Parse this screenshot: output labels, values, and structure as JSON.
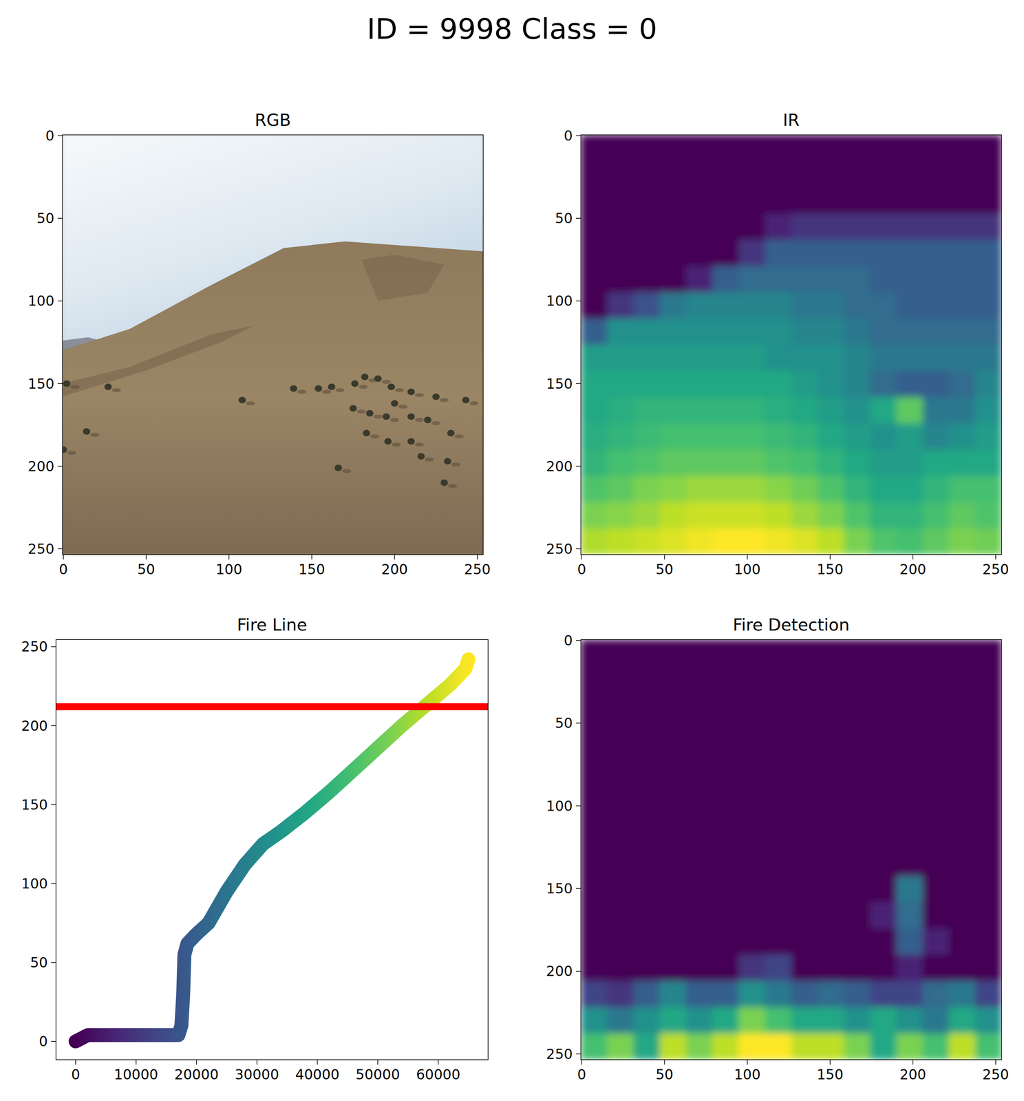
{
  "title": "ID = 9998 Class = 0",
  "chart_data": [
    {
      "type": "image",
      "title": "RGB",
      "xlim": [
        -0.5,
        253.5
      ],
      "ylim": [
        253.5,
        -0.5
      ],
      "xticks": [
        0,
        50,
        100,
        150,
        200,
        250
      ],
      "yticks": [
        0,
        50,
        100,
        150,
        200,
        250
      ]
    },
    {
      "type": "heatmap",
      "title": "IR",
      "xlim": [
        -0.5,
        253.5
      ],
      "ylim": [
        253.5,
        -0.5
      ],
      "xticks": [
        0,
        50,
        100,
        150,
        200,
        250
      ],
      "yticks": [
        0,
        50,
        100,
        150,
        200,
        250
      ],
      "value_range": [
        0,
        1
      ],
      "cells": [
        [
          0,
          0,
          0,
          0,
          0,
          0,
          0,
          0,
          0,
          0,
          0,
          0,
          0,
          0,
          0,
          0
        ],
        [
          0,
          0,
          0,
          0,
          0,
          0,
          0,
          0,
          0,
          0,
          0,
          0,
          0,
          0,
          0,
          0
        ],
        [
          0,
          0,
          0,
          0,
          0,
          0,
          0,
          0,
          0,
          0,
          0,
          0,
          0,
          0,
          0,
          0
        ],
        [
          0,
          0,
          0,
          0,
          0,
          0,
          0,
          0.1,
          0.15,
          0.15,
          0.15,
          0.15,
          0.15,
          0.15,
          0.15,
          0.15
        ],
        [
          0,
          0,
          0,
          0,
          0,
          0,
          0.15,
          0.3,
          0.3,
          0.3,
          0.3,
          0.3,
          0.3,
          0.3,
          0.3,
          0.3
        ],
        [
          0,
          0,
          0,
          0,
          0.1,
          0.3,
          0.35,
          0.35,
          0.35,
          0.35,
          0.35,
          0.3,
          0.3,
          0.3,
          0.3,
          0.3
        ],
        [
          0,
          0.15,
          0.25,
          0.4,
          0.45,
          0.45,
          0.45,
          0.45,
          0.4,
          0.4,
          0.35,
          0.35,
          0.3,
          0.3,
          0.3,
          0.3
        ],
        [
          0.3,
          0.5,
          0.5,
          0.5,
          0.5,
          0.5,
          0.5,
          0.5,
          0.45,
          0.45,
          0.4,
          0.35,
          0.35,
          0.35,
          0.35,
          0.35
        ],
        [
          0.55,
          0.55,
          0.55,
          0.55,
          0.55,
          0.55,
          0.55,
          0.5,
          0.5,
          0.5,
          0.45,
          0.4,
          0.4,
          0.4,
          0.4,
          0.4
        ],
        [
          0.6,
          0.6,
          0.6,
          0.6,
          0.6,
          0.6,
          0.6,
          0.6,
          0.55,
          0.5,
          0.45,
          0.35,
          0.3,
          0.3,
          0.35,
          0.45
        ],
        [
          0.6,
          0.62,
          0.65,
          0.65,
          0.65,
          0.65,
          0.65,
          0.62,
          0.6,
          0.55,
          0.5,
          0.6,
          0.75,
          0.4,
          0.4,
          0.5
        ],
        [
          0.62,
          0.65,
          0.68,
          0.7,
          0.7,
          0.7,
          0.7,
          0.68,
          0.65,
          0.6,
          0.55,
          0.5,
          0.55,
          0.45,
          0.5,
          0.55
        ],
        [
          0.65,
          0.7,
          0.72,
          0.75,
          0.75,
          0.75,
          0.75,
          0.72,
          0.7,
          0.65,
          0.6,
          0.55,
          0.55,
          0.6,
          0.6,
          0.6
        ],
        [
          0.72,
          0.75,
          0.8,
          0.82,
          0.85,
          0.85,
          0.85,
          0.82,
          0.78,
          0.72,
          0.65,
          0.6,
          0.6,
          0.65,
          0.7,
          0.7
        ],
        [
          0.8,
          0.82,
          0.85,
          0.9,
          0.92,
          0.92,
          0.92,
          0.9,
          0.85,
          0.8,
          0.72,
          0.65,
          0.65,
          0.7,
          0.75,
          0.72
        ],
        [
          0.88,
          0.9,
          0.92,
          0.95,
          0.98,
          1,
          1,
          0.98,
          0.95,
          0.9,
          0.8,
          0.72,
          0.7,
          0.75,
          0.8,
          0.78
        ]
      ]
    },
    {
      "type": "line",
      "title": "Fire Line",
      "xlim": [
        -3250,
        68250
      ],
      "ylim": [
        -11.6,
        254.5
      ],
      "xticks": [
        0,
        10000,
        20000,
        30000,
        40000,
        50000,
        60000
      ],
      "yticks": [
        0,
        50,
        100,
        150,
        200,
        250
      ],
      "x": [
        0,
        1000,
        2000,
        5000,
        10000,
        15000,
        17000,
        17500,
        17800,
        18000,
        18500,
        20000,
        22000,
        25000,
        28000,
        31000,
        34000,
        38000,
        42000,
        46000,
        50000,
        54000,
        58000,
        62000,
        64500,
        65000
      ],
      "series": [
        {
          "color": "viridis",
          "values": [
            0,
            2,
            4,
            4,
            4,
            4,
            4,
            10,
            30,
            55,
            62,
            68,
            75,
            95,
            112,
            125,
            133,
            145,
            158,
            172,
            186,
            200,
            213,
            226,
            236,
            242
          ]
        }
      ],
      "reference_line": {
        "y": 212,
        "color": "#ff0000"
      }
    },
    {
      "type": "heatmap",
      "title": "Fire Detection",
      "xlim": [
        -0.5,
        253.5
      ],
      "ylim": [
        253.5,
        -0.5
      ],
      "xticks": [
        0,
        50,
        100,
        150,
        200,
        250
      ],
      "yticks": [
        0,
        50,
        100,
        150,
        200,
        250
      ],
      "value_range": [
        0,
        1
      ],
      "cells": [
        [
          0,
          0,
          0,
          0,
          0,
          0,
          0,
          0,
          0,
          0,
          0,
          0,
          0,
          0,
          0,
          0
        ],
        [
          0,
          0,
          0,
          0,
          0,
          0,
          0,
          0,
          0,
          0,
          0,
          0,
          0,
          0,
          0,
          0
        ],
        [
          0,
          0,
          0,
          0,
          0,
          0,
          0,
          0,
          0,
          0,
          0,
          0,
          0,
          0,
          0,
          0
        ],
        [
          0,
          0,
          0,
          0,
          0,
          0,
          0,
          0,
          0,
          0,
          0,
          0,
          0,
          0,
          0,
          0
        ],
        [
          0,
          0,
          0,
          0,
          0,
          0,
          0,
          0,
          0,
          0,
          0,
          0,
          0,
          0,
          0,
          0
        ],
        [
          0,
          0,
          0,
          0,
          0,
          0,
          0,
          0,
          0,
          0,
          0,
          0,
          0,
          0,
          0,
          0
        ],
        [
          0,
          0,
          0,
          0,
          0,
          0,
          0,
          0,
          0,
          0,
          0,
          0,
          0,
          0,
          0,
          0
        ],
        [
          0,
          0,
          0,
          0,
          0,
          0,
          0,
          0,
          0,
          0,
          0,
          0,
          0,
          0,
          0,
          0
        ],
        [
          0,
          0,
          0,
          0,
          0,
          0,
          0,
          0,
          0,
          0,
          0,
          0,
          0,
          0,
          0,
          0
        ],
        [
          0,
          0,
          0,
          0,
          0,
          0,
          0,
          0,
          0,
          0,
          0,
          0,
          0.4,
          0,
          0,
          0
        ],
        [
          0,
          0,
          0,
          0,
          0,
          0,
          0,
          0,
          0,
          0,
          0,
          0.1,
          0.35,
          0,
          0,
          0
        ],
        [
          0,
          0,
          0,
          0,
          0,
          0,
          0,
          0,
          0,
          0,
          0,
          0,
          0.3,
          0.1,
          0,
          0
        ],
        [
          0,
          0,
          0,
          0,
          0,
          0,
          0.15,
          0.2,
          0,
          0,
          0,
          0,
          0.1,
          0,
          0,
          0
        ],
        [
          0.2,
          0.15,
          0.3,
          0.45,
          0.3,
          0.3,
          0.5,
          0.4,
          0.3,
          0.35,
          0.3,
          0.2,
          0.2,
          0.35,
          0.4,
          0.2
        ],
        [
          0.5,
          0.4,
          0.5,
          0.6,
          0.5,
          0.6,
          0.8,
          0.7,
          0.6,
          0.6,
          0.5,
          0.6,
          0.5,
          0.4,
          0.6,
          0.5
        ],
        [
          0.7,
          0.8,
          0.6,
          0.9,
          0.8,
          0.9,
          1,
          1,
          0.9,
          0.9,
          0.8,
          0.6,
          0.8,
          0.7,
          0.9,
          0.7
        ]
      ]
    }
  ]
}
